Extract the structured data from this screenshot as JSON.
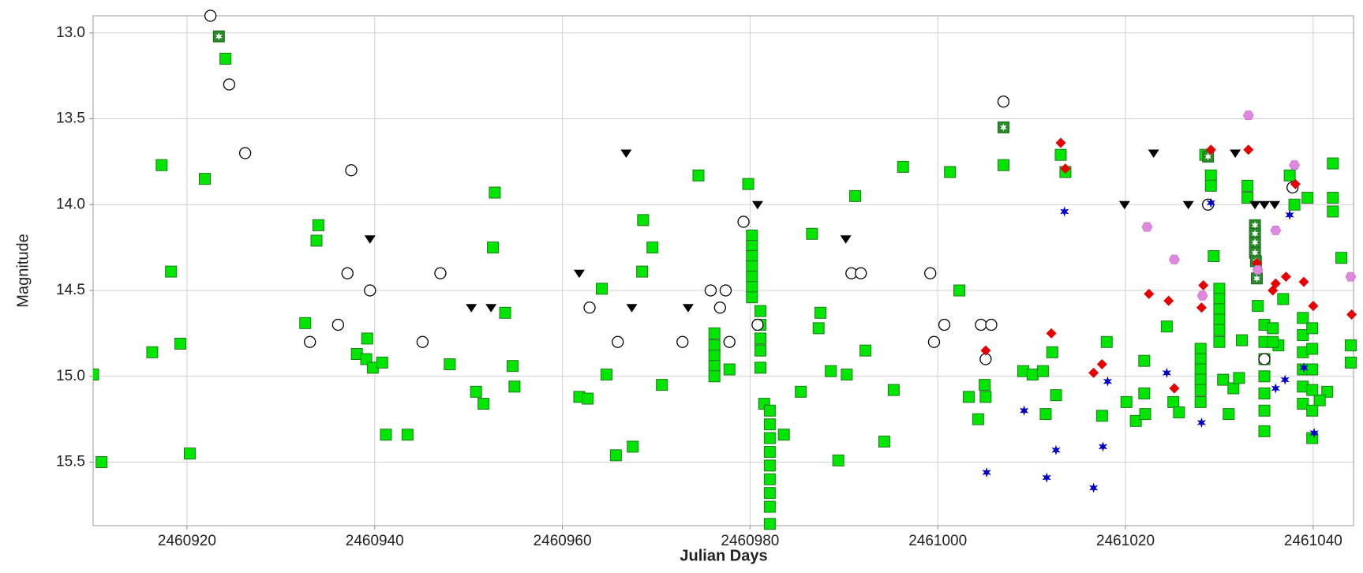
{
  "chart_data": {
    "type": "scatter",
    "xlabel": "Julian Days",
    "ylabel": "Magnitude",
    "xlim": [
      2460910,
      2461044.3
    ],
    "ylim": [
      12.9,
      15.87
    ],
    "y_inverted": true,
    "grid": true,
    "xticks": [
      2460920,
      2460940,
      2460960,
      2460980,
      2461000,
      2461020,
      2461040
    ],
    "yticks": [
      {
        "value": 13,
        "label": "13.0"
      },
      13.5,
      {
        "value": 14,
        "label": "14.0"
      },
      14.5,
      {
        "value": 15,
        "label": "15.0"
      },
      15.5
    ],
    "series": [
      {
        "color": "#00e600",
        "edgecolor": "#1d7a1d",
        "marker": "square",
        "x": [
          2460910.0,
          2460910.9,
          2460916.3,
          2460917.3,
          2460918.3,
          2460919.3,
          2460920.3,
          2460921.9,
          2460924.1,
          2460932.6,
          2460933.8,
          2460934.0,
          2460938.1,
          2460939.1,
          2460939.2,
          2460939.8,
          2460940.8,
          2460941.2,
          2460943.5,
          2460948.0,
          2460950.8,
          2460951.6,
          2460952.6,
          2460952.8,
          2460953.9,
          2460954.7,
          2460954.9,
          2460961.8,
          2460962.7,
          2460964.2,
          2460964.7,
          2460965.7,
          2460967.5,
          2460968.5,
          2460968.6,
          2460969.6,
          2460970.6,
          2460974.5,
          2460979.8,
          2460986.6,
          2460987.5,
          2460987.3,
          2460985.4,
          2460983.6,
          2460988.6,
          2460989.4,
          2460990.3,
          2460991.2,
          2460992.3,
          2460994.3,
          2460995.3,
          2460996.3,
          2461001.3,
          2461002.3,
          2461003.3,
          2461004.3,
          2461005.0,
          2461005.1,
          2461007.0,
          2461009.1,
          2461010.1,
          2461011.2,
          2461011.5,
          2461012.2,
          2461012.6,
          2461013.1,
          2461013.6,
          2461017.5,
          2461018.0,
          2461020.1,
          2461021.1,
          2461022.0,
          2461022.0,
          2461022.1,
          2461024.4,
          2461025.1,
          2461025.7,
          2461028.5,
          2461029.1,
          2461029.1,
          2461029.4,
          2461030.4,
          2461031.5,
          2461031.0,
          2461032.1,
          2461032.4,
          2461034.1,
          2461033.0,
          2461033.0,
          2461036.8,
          2461036.3,
          2461037.5,
          2461038.0,
          2461039.4,
          2461042.1,
          2461042.1,
          2461042.1,
          2461043.0,
          2461044.0,
          2461044.0,
          2461041.5,
          2461040.7
        ],
        "values": [
          14.99,
          15.5,
          14.86,
          13.77,
          14.39,
          14.81,
          15.45,
          13.85,
          13.15,
          14.69,
          14.21,
          14.12,
          14.87,
          14.9,
          14.78,
          14.95,
          14.92,
          15.34,
          15.34,
          14.93,
          15.09,
          15.16,
          14.25,
          13.93,
          14.63,
          14.94,
          15.06,
          15.12,
          15.13,
          14.49,
          14.99,
          15.46,
          15.41,
          14.39,
          14.09,
          14.25,
          15.05,
          13.83,
          13.88,
          14.17,
          14.63,
          14.72,
          15.09,
          15.34,
          14.97,
          15.49,
          14.99,
          13.95,
          14.85,
          15.38,
          15.08,
          13.78,
          13.81,
          14.5,
          15.12,
          15.25,
          15.05,
          15.12,
          13.77,
          14.97,
          14.99,
          14.97,
          15.22,
          14.86,
          15.11,
          13.71,
          13.81,
          15.23,
          14.8,
          15.15,
          15.26,
          14.91,
          15.1,
          15.22,
          14.71,
          15.15,
          15.21,
          13.71,
          13.83,
          13.89,
          14.3,
          15.02,
          15.07,
          15.22,
          15.01,
          14.79,
          14.59,
          13.89,
          13.96,
          14.55,
          14.82,
          13.83,
          14.0,
          13.96,
          13.76,
          13.96,
          14.04,
          14.31,
          14.82,
          14.92,
          15.09,
          15.14
        ]
      },
      {
        "color": "#00e600",
        "edgecolor": "#1d7a1d",
        "marker": "square",
        "x": [
          2460980.2,
          2460980.2,
          2460980.2,
          2460980.2,
          2460980.2,
          2460980.2,
          2460980.2,
          2460981.1,
          2460981.1,
          2460981.1,
          2460981.1,
          2460981.1,
          2460981.5,
          2460982.1,
          2460982.1,
          2460982.1,
          2460982.1,
          2460982.1,
          2460982.1,
          2460982.1,
          2460982.1,
          2460982.1,
          2460976.2,
          2460976.2,
          2460976.2,
          2460976.2,
          2460976.2,
          2460977.8,
          2461028.0,
          2461028.0,
          2461028.0,
          2461028.0,
          2461028.0,
          2461028.0,
          2461030.0,
          2461030.0,
          2461030.0,
          2461030.0,
          2461030.0,
          2461030.0,
          2461034.8,
          2461034.8,
          2461034.8,
          2461034.8,
          2461034.8,
          2461034.8,
          2461034.8,
          2461035.7,
          2461035.7,
          2461038.9,
          2461038.9,
          2461038.9,
          2461038.9,
          2461038.9,
          2461038.9,
          2461039.9,
          2461039.9,
          2461039.9,
          2461039.9,
          2461039.9,
          2461039.9
        ],
        "values": [
          14.18,
          14.24,
          14.3,
          14.36,
          14.42,
          14.48,
          14.54,
          14.62,
          14.7,
          14.78,
          14.85,
          14.95,
          15.16,
          15.2,
          15.28,
          15.36,
          15.44,
          15.52,
          15.6,
          15.68,
          15.76,
          15.86,
          14.75,
          14.82,
          14.88,
          14.94,
          15.0,
          14.96,
          14.84,
          14.9,
          14.96,
          15.02,
          15.08,
          15.15,
          14.49,
          14.55,
          14.61,
          14.67,
          14.73,
          14.8,
          14.7,
          14.8,
          14.9,
          15.0,
          15.1,
          15.2,
          15.32,
          14.72,
          14.8,
          14.66,
          14.76,
          14.86,
          14.96,
          15.06,
          15.16,
          14.72,
          14.84,
          14.96,
          15.08,
          15.2,
          15.36
        ]
      },
      {
        "color": "#2a8a2a",
        "edgecolor": "#1d6a1d",
        "marker": "square-star",
        "x": [
          2460923.4,
          2461007.0,
          2461028.8,
          2461033.8,
          2461033.8,
          2461033.8,
          2461033.8,
          2461033.9,
          2461034.0
        ],
        "values": [
          13.02,
          13.55,
          13.72,
          14.12,
          14.17,
          14.22,
          14.28,
          14.33,
          14.43
        ]
      },
      {
        "color": "#000000",
        "marker": "circle",
        "x": [
          2460922.5,
          2460924.5,
          2460926.2,
          2460933.1,
          2460936.1,
          2460937.1,
          2460937.5,
          2460939.5,
          2460945.1,
          2460947.0,
          2460962.9,
          2460965.9,
          2460972.8,
          2460975.8,
          2460976.8,
          2460977.4,
          2460977.8,
          2460979.3,
          2460980.8,
          2460990.8,
          2460991.8,
          2460999.2,
          2460999.6,
          2461000.7,
          2461004.6,
          2461005.7,
          2461005.1,
          2461007.0,
          2461028.8,
          2461037.8,
          2461034.8
        ],
        "values": [
          12.9,
          13.3,
          13.7,
          14.8,
          14.7,
          14.4,
          13.8,
          14.5,
          14.8,
          14.4,
          14.6,
          14.8,
          14.8,
          14.5,
          14.6,
          14.5,
          14.8,
          14.1,
          14.7,
          14.4,
          14.4,
          14.4,
          14.8,
          14.7,
          14.7,
          14.7,
          14.9,
          13.4,
          14.0,
          13.9,
          14.9
        ]
      },
      {
        "color": "#000000",
        "marker": "triangle-down",
        "x": [
          2460939.5,
          2460950.3,
          2460952.4,
          2460961.8,
          2460966.8,
          2460967.4,
          2460973.4,
          2460980.8,
          2460990.2,
          2461019.9,
          2461023.0,
          2461026.7,
          2461031.7,
          2461033.8,
          2461034.8,
          2461035.9
        ],
        "values": [
          14.2,
          14.6,
          14.6,
          14.4,
          13.7,
          14.6,
          14.6,
          14.0,
          14.2,
          14.0,
          13.7,
          14.0,
          13.7,
          14.0,
          14.0,
          14.0
        ]
      },
      {
        "color": "#e60000",
        "marker": "diamond",
        "x": [
          2461005.1,
          2461012.1,
          2461013.1,
          2461013.6,
          2461016.6,
          2461017.5,
          2461022.5,
          2461024.6,
          2461025.2,
          2461028.1,
          2461028.3,
          2461029.1,
          2461033.1,
          2461034.0,
          2461035.7,
          2461036.0,
          2461037.1,
          2461038.1,
          2461039.0,
          2461040.0,
          2461044.1
        ],
        "values": [
          14.85,
          14.75,
          13.64,
          13.79,
          14.98,
          14.93,
          14.52,
          14.56,
          15.07,
          14.6,
          14.47,
          13.68,
          13.68,
          14.34,
          14.5,
          14.46,
          14.42,
          13.88,
          14.45,
          14.59,
          14.64
        ]
      },
      {
        "color": "#0000cc",
        "marker": "star",
        "x": [
          2461005.2,
          2461009.2,
          2461011.6,
          2461012.6,
          2461013.5,
          2461016.6,
          2461017.6,
          2461018.1,
          2461024.4,
          2461028.1,
          2461029.1,
          2461036.0,
          2461037.0,
          2461037.5,
          2461040.1,
          2461039.0
        ],
        "values": [
          15.56,
          15.2,
          15.59,
          15.43,
          14.04,
          15.65,
          15.41,
          15.03,
          14.98,
          15.27,
          13.99,
          15.07,
          15.02,
          14.06,
          15.33,
          14.95
        ]
      },
      {
        "color": "#e088e0",
        "marker": "hexagon",
        "x": [
          2461022.3,
          2461025.2,
          2461028.2,
          2461033.1,
          2461034.1,
          2461036.0,
          2461038.0,
          2461044.0
        ],
        "values": [
          14.13,
          14.32,
          14.53,
          13.48,
          14.38,
          14.15,
          13.77,
          14.42
        ]
      }
    ]
  }
}
